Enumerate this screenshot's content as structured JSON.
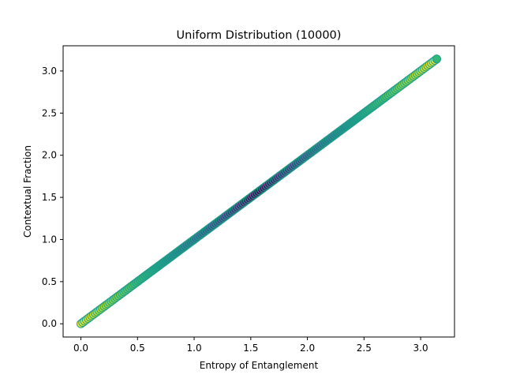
{
  "chart_data": {
    "type": "scatter",
    "title": "Uniform Distribution (10000)",
    "xlabel": "Entropy of Entanglement",
    "ylabel": "Contextual Fraction",
    "xlim": [
      -0.157,
      3.299
    ],
    "ylim": [
      -0.157,
      3.299
    ],
    "xticks": [
      0.0,
      0.5,
      1.0,
      1.5,
      2.0,
      2.5,
      3.0
    ],
    "yticks": [
      0.0,
      0.5,
      1.0,
      1.5,
      2.0,
      2.5,
      3.0
    ],
    "xtick_labels": [
      "0.0",
      "0.5",
      "1.0",
      "1.5",
      "2.0",
      "2.5",
      "3.0"
    ],
    "ytick_labels": [
      "0.0",
      "0.5",
      "1.0",
      "1.5",
      "2.0",
      "2.5",
      "3.0"
    ],
    "grid": false,
    "legend": "none",
    "colormap": "viridis",
    "color_encoding": "distance from x = 1.57 (purple at center, yellow at ends)",
    "series": [
      {
        "x_start": 0.0,
        "x_end": 3.1416,
        "relation": "y = x",
        "point_count": 10000
      }
    ],
    "colors": {
      "viridis": [
        "#440154",
        "#482878",
        "#3e4989",
        "#31688e",
        "#26828e",
        "#1f9e89",
        "#35b779",
        "#6ece58",
        "#b5de2b",
        "#fde725"
      ],
      "edge_color": "#1f9e89",
      "last_point_color": "#35b779"
    }
  }
}
